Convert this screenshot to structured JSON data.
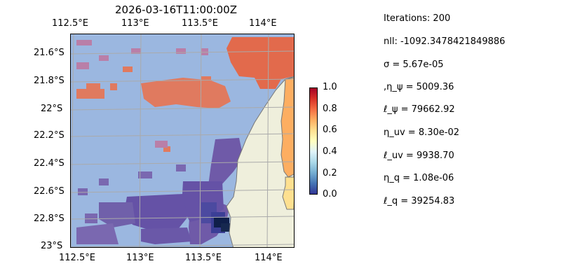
{
  "title": "2026-03-16T11:00:00Z",
  "top_longitude_labels": [
    "112.5°E",
    "113°E",
    "113.5°E",
    "114°E"
  ],
  "bottom_longitude_labels": [
    "112.5°E",
    "113°E",
    "113.5°E",
    "114°E"
  ],
  "latitude_labels": [
    "21.6°S",
    "21.8°S",
    "22°S",
    "22.2°S",
    "22.4°S",
    "22.6°S",
    "22.8°S",
    "23°S"
  ],
  "colorbar": {
    "ticks": [
      "1.0",
      "0.8",
      "0.6",
      "0.4",
      "0.2",
      "0.0"
    ],
    "colormap": "RdYlBu_r"
  },
  "colors": {
    "ocean_background": "#9bb7e0",
    "land": "#efefdc",
    "coastline": "#777777",
    "grid": "#aaaaaa"
  },
  "parameters": [
    "Iterations: 200",
    "nll: -1092.3478421849886",
    "σ = 5.67e-05",
    ",η_ψ = 5009.36",
    "ℓ_ψ = 79662.92",
    "η_uv = 8.30e-02",
    "ℓ_uv = 9938.70",
    "η_q = 1.08e-06",
    "ℓ_q = 39254.83"
  ]
}
